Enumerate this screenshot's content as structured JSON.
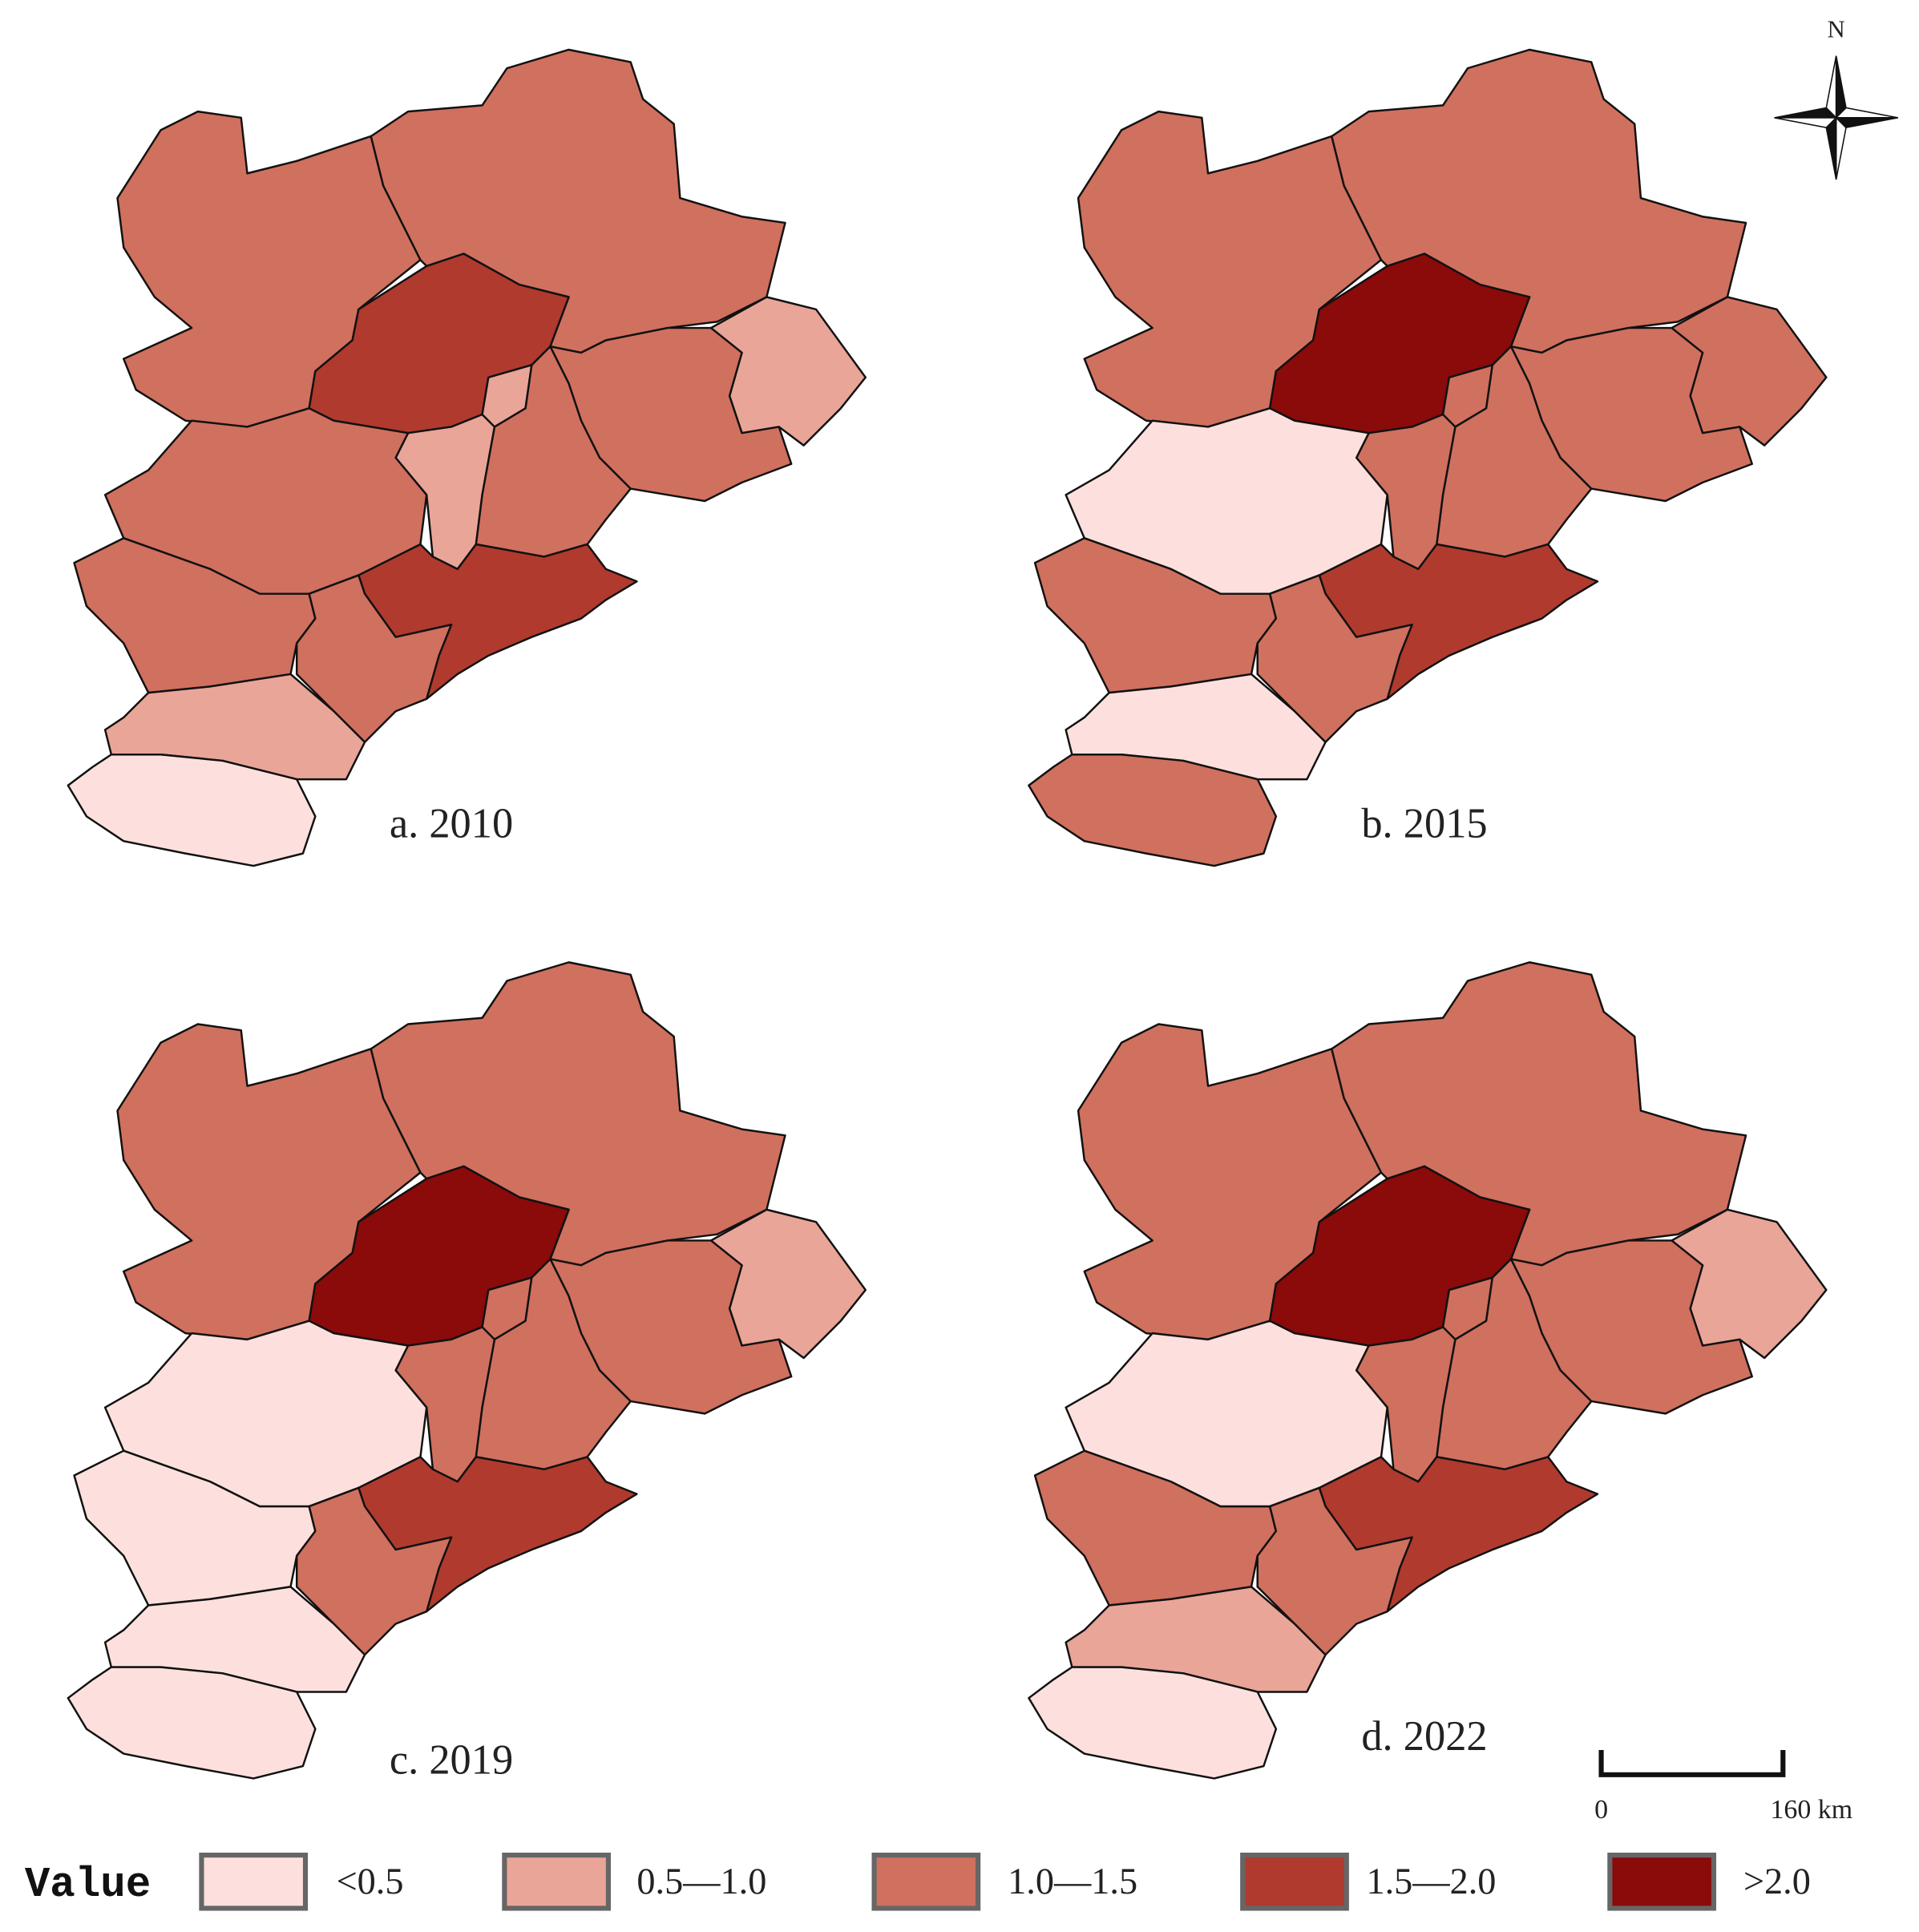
{
  "panels": [
    {
      "label": "a. 2010",
      "fills": [
        "#d0705e",
        "#d0705e",
        "#b03a2e",
        "#e9a598",
        "#e9a598",
        "#d0705e",
        "#d0705e",
        "#d0705e",
        "#b03a2e",
        "#d0705e",
        "#d0705e",
        "#e9a598",
        "#fde0dd"
      ]
    },
    {
      "label": "b. 2015",
      "fills": [
        "#d0705e",
        "#d0705e",
        "#8b0a0a",
        "#d0705e",
        "#d0705e",
        "#d0705e",
        "#d0705e",
        "#fde0dd",
        "#b03a2e",
        "#d0705e",
        "#d0705e",
        "#fde0dd",
        "#d0705e"
      ]
    },
    {
      "label": "c. 2019",
      "fills": [
        "#d0705e",
        "#d0705e",
        "#8b0a0a",
        "#d0705e",
        "#e9a598",
        "#d0705e",
        "#d0705e",
        "#fde0dd",
        "#b03a2e",
        "#fde0dd",
        "#d0705e",
        "#fde0dd",
        "#fde0dd"
      ]
    },
    {
      "label": "d. 2022",
      "fills": [
        "#d0705e",
        "#d0705e",
        "#8b0a0a",
        "#d0705e",
        "#e9a598",
        "#d0705e",
        "#d0705e",
        "#fde0dd",
        "#b03a2e",
        "#d0705e",
        "#d0705e",
        "#e9a598",
        "#fde0dd"
      ]
    }
  ],
  "north_label": "N",
  "scale_bar": {
    "start_label": "0",
    "end_label": "160 km"
  },
  "legend": {
    "title": "Value",
    "items": [
      {
        "label": "<0.5",
        "color": "#fde0dd"
      },
      {
        "label": "0.5—1.0",
        "color": "#e9a598"
      },
      {
        "label": "1.0—1.5",
        "color": "#d0705e"
      },
      {
        "label": "1.5—2.0",
        "color": "#b03a2e"
      },
      {
        "label": ">2.0",
        "color": "#8b0a0a"
      }
    ]
  }
}
